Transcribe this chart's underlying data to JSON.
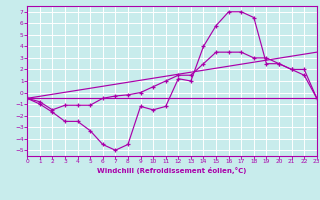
{
  "xlabel": "Windchill (Refroidissement éolien,°C)",
  "bg_color": "#c8ecec",
  "line_color": "#aa00aa",
  "grid_color": "#ffffff",
  "axis_color": "#aa00aa",
  "xlim": [
    0,
    23
  ],
  "ylim": [
    -5.5,
    7.5
  ],
  "xticks": [
    0,
    1,
    2,
    3,
    4,
    5,
    6,
    7,
    8,
    9,
    10,
    11,
    12,
    13,
    14,
    15,
    16,
    17,
    18,
    19,
    20,
    21,
    22,
    23
  ],
  "yticks": [
    -5,
    -4,
    -3,
    -2,
    -1,
    0,
    1,
    2,
    3,
    4,
    5,
    6,
    7
  ],
  "curve1_x": [
    0,
    1,
    2,
    3,
    4,
    5,
    6,
    7,
    8,
    9,
    10,
    11,
    12,
    13,
    14,
    15,
    16,
    17,
    18,
    19,
    20,
    21,
    22,
    23
  ],
  "curve1_y": [
    -0.5,
    -1.0,
    -1.7,
    -2.5,
    -2.5,
    -3.3,
    -4.5,
    -5.0,
    -4.5,
    -1.2,
    -1.5,
    -1.2,
    1.2,
    1.0,
    4.0,
    5.8,
    7.0,
    7.0,
    6.5,
    2.5,
    2.5,
    2.0,
    2.0,
    -0.5
  ],
  "curve2_x": [
    0,
    1,
    2,
    3,
    4,
    5,
    6,
    7,
    8,
    9,
    10,
    11,
    12,
    13,
    14,
    15,
    16,
    17,
    18,
    19,
    20,
    21,
    22,
    23
  ],
  "curve2_y": [
    -0.5,
    -0.8,
    -1.5,
    -1.1,
    -1.1,
    -1.1,
    -0.5,
    -0.3,
    -0.2,
    0.0,
    0.5,
    1.0,
    1.5,
    1.5,
    2.5,
    3.5,
    3.5,
    3.5,
    3.0,
    3.0,
    2.5,
    2.0,
    1.5,
    -0.5
  ],
  "curve3_x": [
    0,
    23
  ],
  "curve3_y": [
    -0.5,
    -0.5
  ],
  "curve4_x": [
    0,
    23
  ],
  "curve4_y": [
    -0.5,
    3.5
  ]
}
